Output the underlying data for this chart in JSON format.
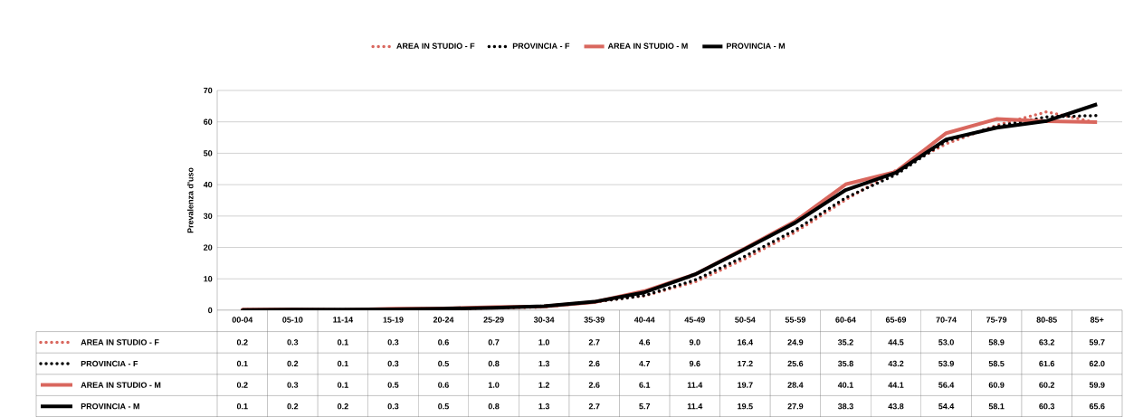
{
  "chart_data": {
    "type": "line",
    "ylabel": "Prevalenza d'uso",
    "categories": [
      "00-04",
      "05-10",
      "11-14",
      "15-19",
      "20-24",
      "25-29",
      "30-34",
      "35-39",
      "40-44",
      "45-49",
      "50-54",
      "55-59",
      "60-64",
      "65-69",
      "70-74",
      "75-79",
      "80-85",
      "85+"
    ],
    "series": [
      {
        "name": "AREA IN STUDIO - F",
        "color": "#d9675e",
        "line_style": "dotted",
        "values": [
          0.2,
          0.3,
          0.1,
          0.3,
          0.6,
          0.7,
          1.0,
          2.7,
          4.6,
          9.0,
          16.4,
          24.9,
          35.2,
          44.5,
          53.0,
          58.9,
          63.2,
          59.7
        ],
        "value_labels": [
          "0.2",
          "0.3",
          "0.1",
          "0.3",
          "0.6",
          "0.7",
          "1.0",
          "2.7",
          "4.6",
          "9.0",
          "16.4",
          "24.9",
          "35.2",
          "44.5",
          "53.0",
          "58.9",
          "63.2",
          "59.7"
        ]
      },
      {
        "name": "PROVINCIA - F",
        "color": "#000000",
        "line_style": "dotted",
        "values": [
          0.1,
          0.2,
          0.1,
          0.3,
          0.5,
          0.8,
          1.3,
          2.6,
          4.7,
          9.6,
          17.2,
          25.6,
          35.8,
          43.2,
          53.9,
          58.5,
          61.6,
          62.0
        ],
        "value_labels": [
          "0.1",
          "0.2",
          "0.1",
          "0.3",
          "0.5",
          "0.8",
          "1.3",
          "2.6",
          "4.7",
          "9.6",
          "17.2",
          "25.6",
          "35.8",
          "43.2",
          "53.9",
          "58.5",
          "61.6",
          "62.0"
        ]
      },
      {
        "name": "AREA IN STUDIO - M",
        "color": "#d9675e",
        "line_style": "solid",
        "values": [
          0.2,
          0.3,
          0.1,
          0.5,
          0.6,
          1.0,
          1.2,
          2.6,
          6.1,
          11.4,
          19.7,
          28.4,
          40.1,
          44.1,
          56.4,
          60.9,
          60.2,
          59.9
        ],
        "value_labels": [
          "0.2",
          "0.3",
          "0.1",
          "0.5",
          "0.6",
          "1.0",
          "1.2",
          "2.6",
          "6.1",
          "11.4",
          "19.7",
          "28.4",
          "40.1",
          "44.1",
          "56.4",
          "60.9",
          "60.2",
          "59.9"
        ]
      },
      {
        "name": "PROVINCIA - M",
        "color": "#000000",
        "line_style": "solid",
        "values": [
          0.1,
          0.2,
          0.2,
          0.3,
          0.5,
          0.8,
          1.3,
          2.7,
          5.7,
          11.4,
          19.5,
          27.9,
          38.3,
          43.8,
          54.4,
          58.1,
          60.3,
          65.6
        ],
        "value_labels": [
          "0.1",
          "0.2",
          "0.2",
          "0.3",
          "0.5",
          "0.8",
          "1.3",
          "2.7",
          "5.7",
          "11.4",
          "19.5",
          "27.9",
          "38.3",
          "43.8",
          "54.4",
          "58.1",
          "60.3",
          "65.6"
        ]
      }
    ],
    "ylim": [
      0,
      70
    ],
    "yticks": [
      0,
      10,
      20,
      30,
      40,
      50,
      60,
      70
    ],
    "grid": "y",
    "legend": "top",
    "marker": "none"
  }
}
